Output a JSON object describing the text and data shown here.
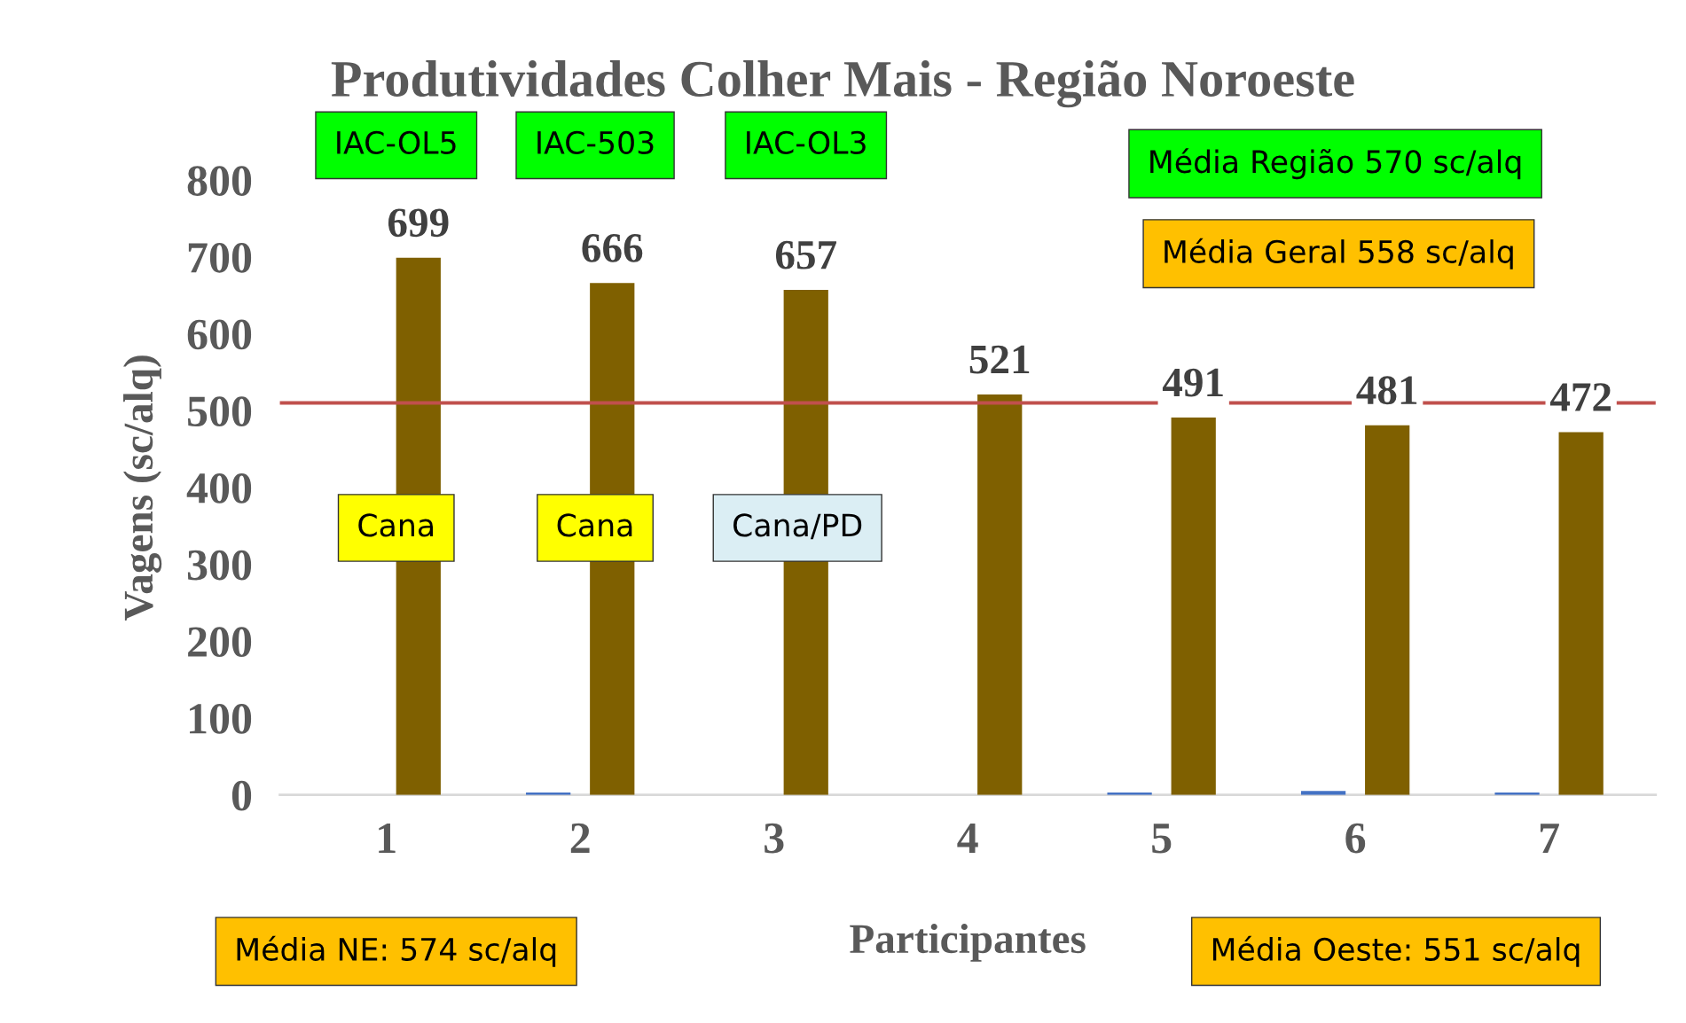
{
  "chart_data": {
    "type": "bar",
    "title": "Produtividades Colher Mais - Região Noroeste",
    "xlabel": "Participantes",
    "ylabel": "Vagens (sc/alq)",
    "categories": [
      "1",
      "2",
      "3",
      "4",
      "5",
      "6",
      "7"
    ],
    "series": [
      {
        "color": "#4472c4",
        "values": [
          null,
          3,
          null,
          null,
          3,
          5,
          3
        ]
      },
      {
        "color": "#7f6000",
        "values": [
          699,
          666,
          657,
          521,
          491,
          481,
          472
        ],
        "value_labels": [
          "699",
          "666",
          "657",
          "521",
          "491",
          "481",
          "472"
        ]
      }
    ],
    "ylim": [
      0,
      800
    ],
    "yticks": [
      0,
      100,
      200,
      300,
      400,
      500,
      600,
      700,
      800
    ],
    "grid": false,
    "legend": false,
    "ref_lines": [
      {
        "axis": "y",
        "value": 510,
        "color": "#c0504d"
      }
    ],
    "annotations": [
      "IAC-OL5",
      "IAC-503",
      "IAC-OL3",
      "Média Região 570 sc/alq",
      "Média Geral 558 sc/alq",
      "Cana",
      "Cana",
      "Cana/PD",
      "Média NE: 574 sc/alq",
      "Média Oeste: 551 sc/alq"
    ]
  }
}
